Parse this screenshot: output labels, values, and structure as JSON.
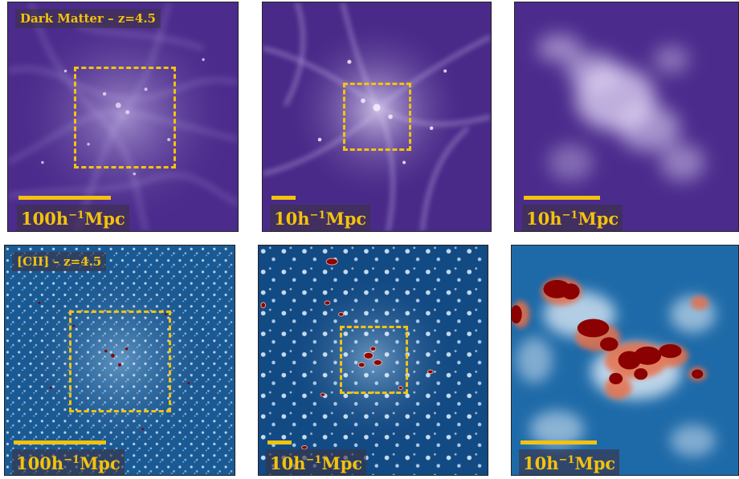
{
  "colors": {
    "accent": "#f4c20d",
    "dm_dark": "#3f1f7a",
    "dm_light": "#f0e8ff",
    "cii_dark": "#0b3a70",
    "cii_mid": "#6fa8d6",
    "cii_hot": "#8b0000"
  },
  "top_row": {
    "tag": "Dark Matter – z=4.5",
    "panels": [
      {
        "scale_value": "100h",
        "scale_exp": "−1",
        "scale_unit": "Mpc"
      },
      {
        "scale_value": "10h",
        "scale_exp": "−1",
        "scale_unit": "Mpc"
      },
      {
        "scale_value": "10h",
        "scale_exp": "−1",
        "scale_unit": "Mpc"
      }
    ]
  },
  "bottom_row": {
    "tag": "[CII] – z=4.5",
    "panels": [
      {
        "scale_value": "100h",
        "scale_exp": "−1",
        "scale_unit": "Mpc"
      },
      {
        "scale_value": "10h",
        "scale_exp": "−1",
        "scale_unit": "Mpc"
      },
      {
        "scale_value": "10h",
        "scale_exp": "−1",
        "scale_unit": "Mpc"
      }
    ]
  }
}
